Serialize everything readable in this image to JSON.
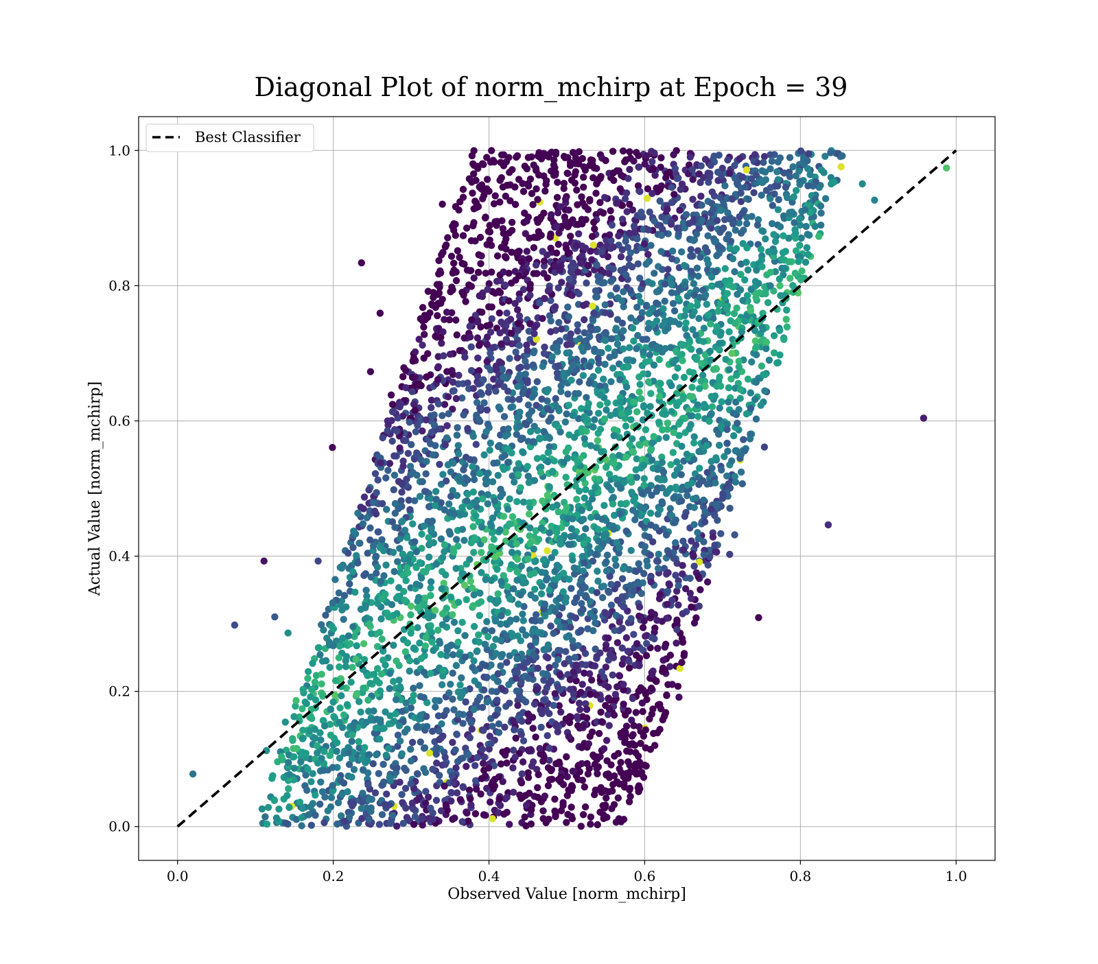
{
  "chart_data": {
    "type": "scatter",
    "title": "Diagonal Plot of norm_mchirp at Epoch = 39",
    "xlabel": "Observed Value [norm_mchirp]",
    "ylabel": "Actual Value [norm_mchirp]",
    "xlim": [
      -0.05,
      1.05
    ],
    "ylim": [
      -0.05,
      1.05
    ],
    "xticks": [
      "0.0",
      "0.2",
      "0.4",
      "0.6",
      "0.8",
      "1.0"
    ],
    "yticks": [
      "0.0",
      "0.2",
      "0.4",
      "0.6",
      "0.8",
      "1.0"
    ],
    "grid": true,
    "legend": {
      "position": "top-left",
      "entries": [
        "Best Classifier"
      ]
    },
    "colormap": "viridis",
    "marker_color_low": "#440154",
    "marker_color_high": "#fde725",
    "reference_line": {
      "name": "Best Classifier",
      "x": [
        0.0,
        1.0
      ],
      "y": [
        0.0,
        1.0
      ],
      "color": "#000000",
      "style": "dashed"
    },
    "scatter_distribution": {
      "y_range": [
        0.0,
        1.0
      ],
      "observed_center_at_y0": 0.34,
      "observed_center_at_y1": 0.62,
      "observed_halfwidth": 0.24,
      "color_rule": "brighter near diagonal edges, darker purple in dense center"
    }
  }
}
